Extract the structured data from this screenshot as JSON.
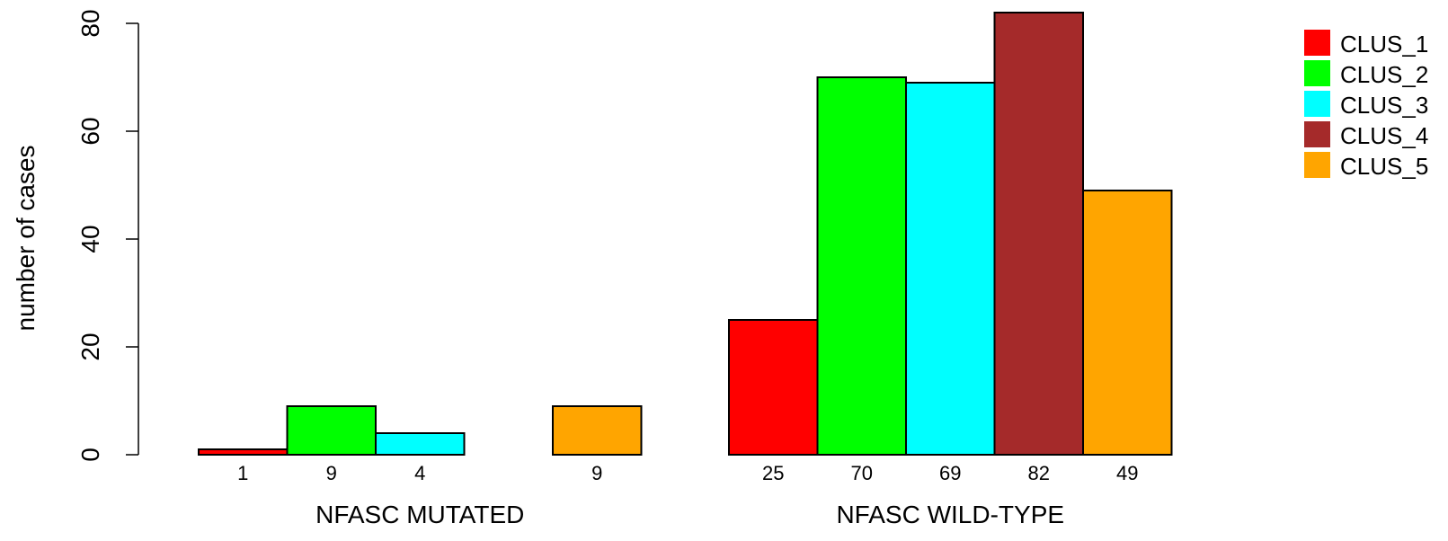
{
  "chart_data": {
    "type": "bar",
    "title": "",
    "ylabel": "number of cases",
    "ylim": [
      0,
      80
    ],
    "yticks": [
      0,
      20,
      40,
      60,
      80
    ],
    "groups": [
      "NFASC MUTATED",
      "NFASC WILD-TYPE"
    ],
    "series": [
      {
        "name": "CLUS_1",
        "color": "#FF0000",
        "values": [
          1,
          25
        ],
        "labels": [
          "1",
          "25"
        ]
      },
      {
        "name": "CLUS_2",
        "color": "#00FF00",
        "values": [
          9,
          70
        ],
        "labels": [
          "9",
          "70"
        ]
      },
      {
        "name": "CLUS_3",
        "color": "#00FFFF",
        "values": [
          4,
          69
        ],
        "labels": [
          "4",
          "69"
        ]
      },
      {
        "name": "CLUS_4",
        "color": "#A52A2A",
        "values": [
          0,
          82
        ],
        "labels": [
          "",
          "82"
        ]
      },
      {
        "name": "CLUS_5",
        "color": "#FFA500",
        "values": [
          9,
          49
        ],
        "labels": [
          "9",
          "49"
        ]
      }
    ],
    "legend": "top-right",
    "grid": false
  }
}
